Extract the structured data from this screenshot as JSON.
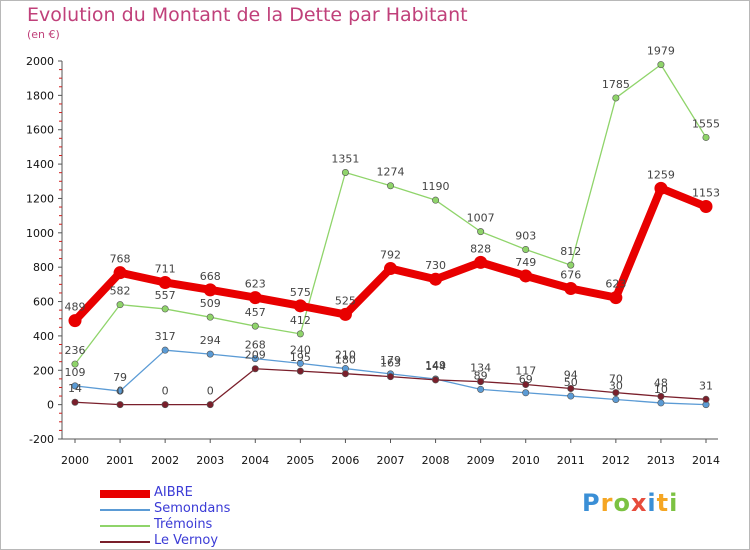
{
  "header": {
    "title": "Evolution du Montant de la Dette par Habitant",
    "subtitle": "(en €)"
  },
  "logo": {
    "text": "Proxiti",
    "letter_colors": [
      "#3a8fd6",
      "#f5a623",
      "#7cc242",
      "#e74c3c",
      "#3a8fd6",
      "#f5a623",
      "#7cc242"
    ]
  },
  "chart_data": {
    "type": "line",
    "title": "Evolution du Montant de la Dette par Habitant",
    "subtitle": "(en €)",
    "xlabel": "",
    "ylabel": "",
    "x": [
      "2000",
      "2001",
      "2002",
      "2003",
      "2004",
      "2005",
      "2006",
      "2007",
      "2008",
      "2009",
      "2010",
      "2011",
      "2012",
      "2013",
      "2014"
    ],
    "ylim": [
      -200,
      2000
    ],
    "yticks": [
      -200,
      0,
      200,
      400,
      600,
      800,
      1000,
      1200,
      1400,
      1600,
      1800,
      2000
    ],
    "grid": false,
    "legend_position": "bottom-left",
    "series": [
      {
        "name": "AIBRE",
        "color": "#e80000",
        "values": [
          489,
          768,
          711,
          668,
          623,
          575,
          525,
          792,
          730,
          828,
          749,
          676,
          623,
          1259,
          1153
        ],
        "labels": [
          "489",
          "768",
          "711",
          "668",
          "623",
          "575",
          "525",
          "792",
          "730",
          "828",
          "749",
          "676",
          "623",
          "1259",
          "1153"
        ]
      },
      {
        "name": "Semondans",
        "color": "#5b9bd5",
        "values": [
          109,
          79,
          317,
          294,
          268,
          240,
          210,
          179,
          149,
          89,
          69,
          50,
          30,
          10,
          0
        ],
        "labels": [
          "109",
          "79",
          "317",
          "294",
          "268",
          "240",
          "210",
          "179",
          "149",
          "89",
          "69",
          "50",
          "30",
          "10",
          ""
        ]
      },
      {
        "name": "Trémoins",
        "color": "#8fd46a",
        "values": [
          236,
          582,
          557,
          509,
          457,
          412,
          1351,
          1274,
          1190,
          1007,
          903,
          812,
          1785,
          1979,
          1555
        ],
        "labels": [
          "236",
          "582",
          "557",
          "509",
          "457",
          "412",
          "1351",
          "1274",
          "1190",
          "1007",
          "903",
          "812",
          "1785",
          "1979",
          "1555"
        ]
      },
      {
        "name": "Le Vernoy",
        "color": "#7a1f2b",
        "values": [
          14,
          0,
          0,
          0,
          209,
          195,
          180,
          163,
          144,
          134,
          117,
          94,
          70,
          48,
          31
        ],
        "labels": [
          "14",
          "0",
          "0",
          "0",
          "209",
          "195",
          "180",
          "163",
          "144",
          "134",
          "117",
          "94",
          "70",
          "48",
          "31"
        ]
      }
    ]
  }
}
